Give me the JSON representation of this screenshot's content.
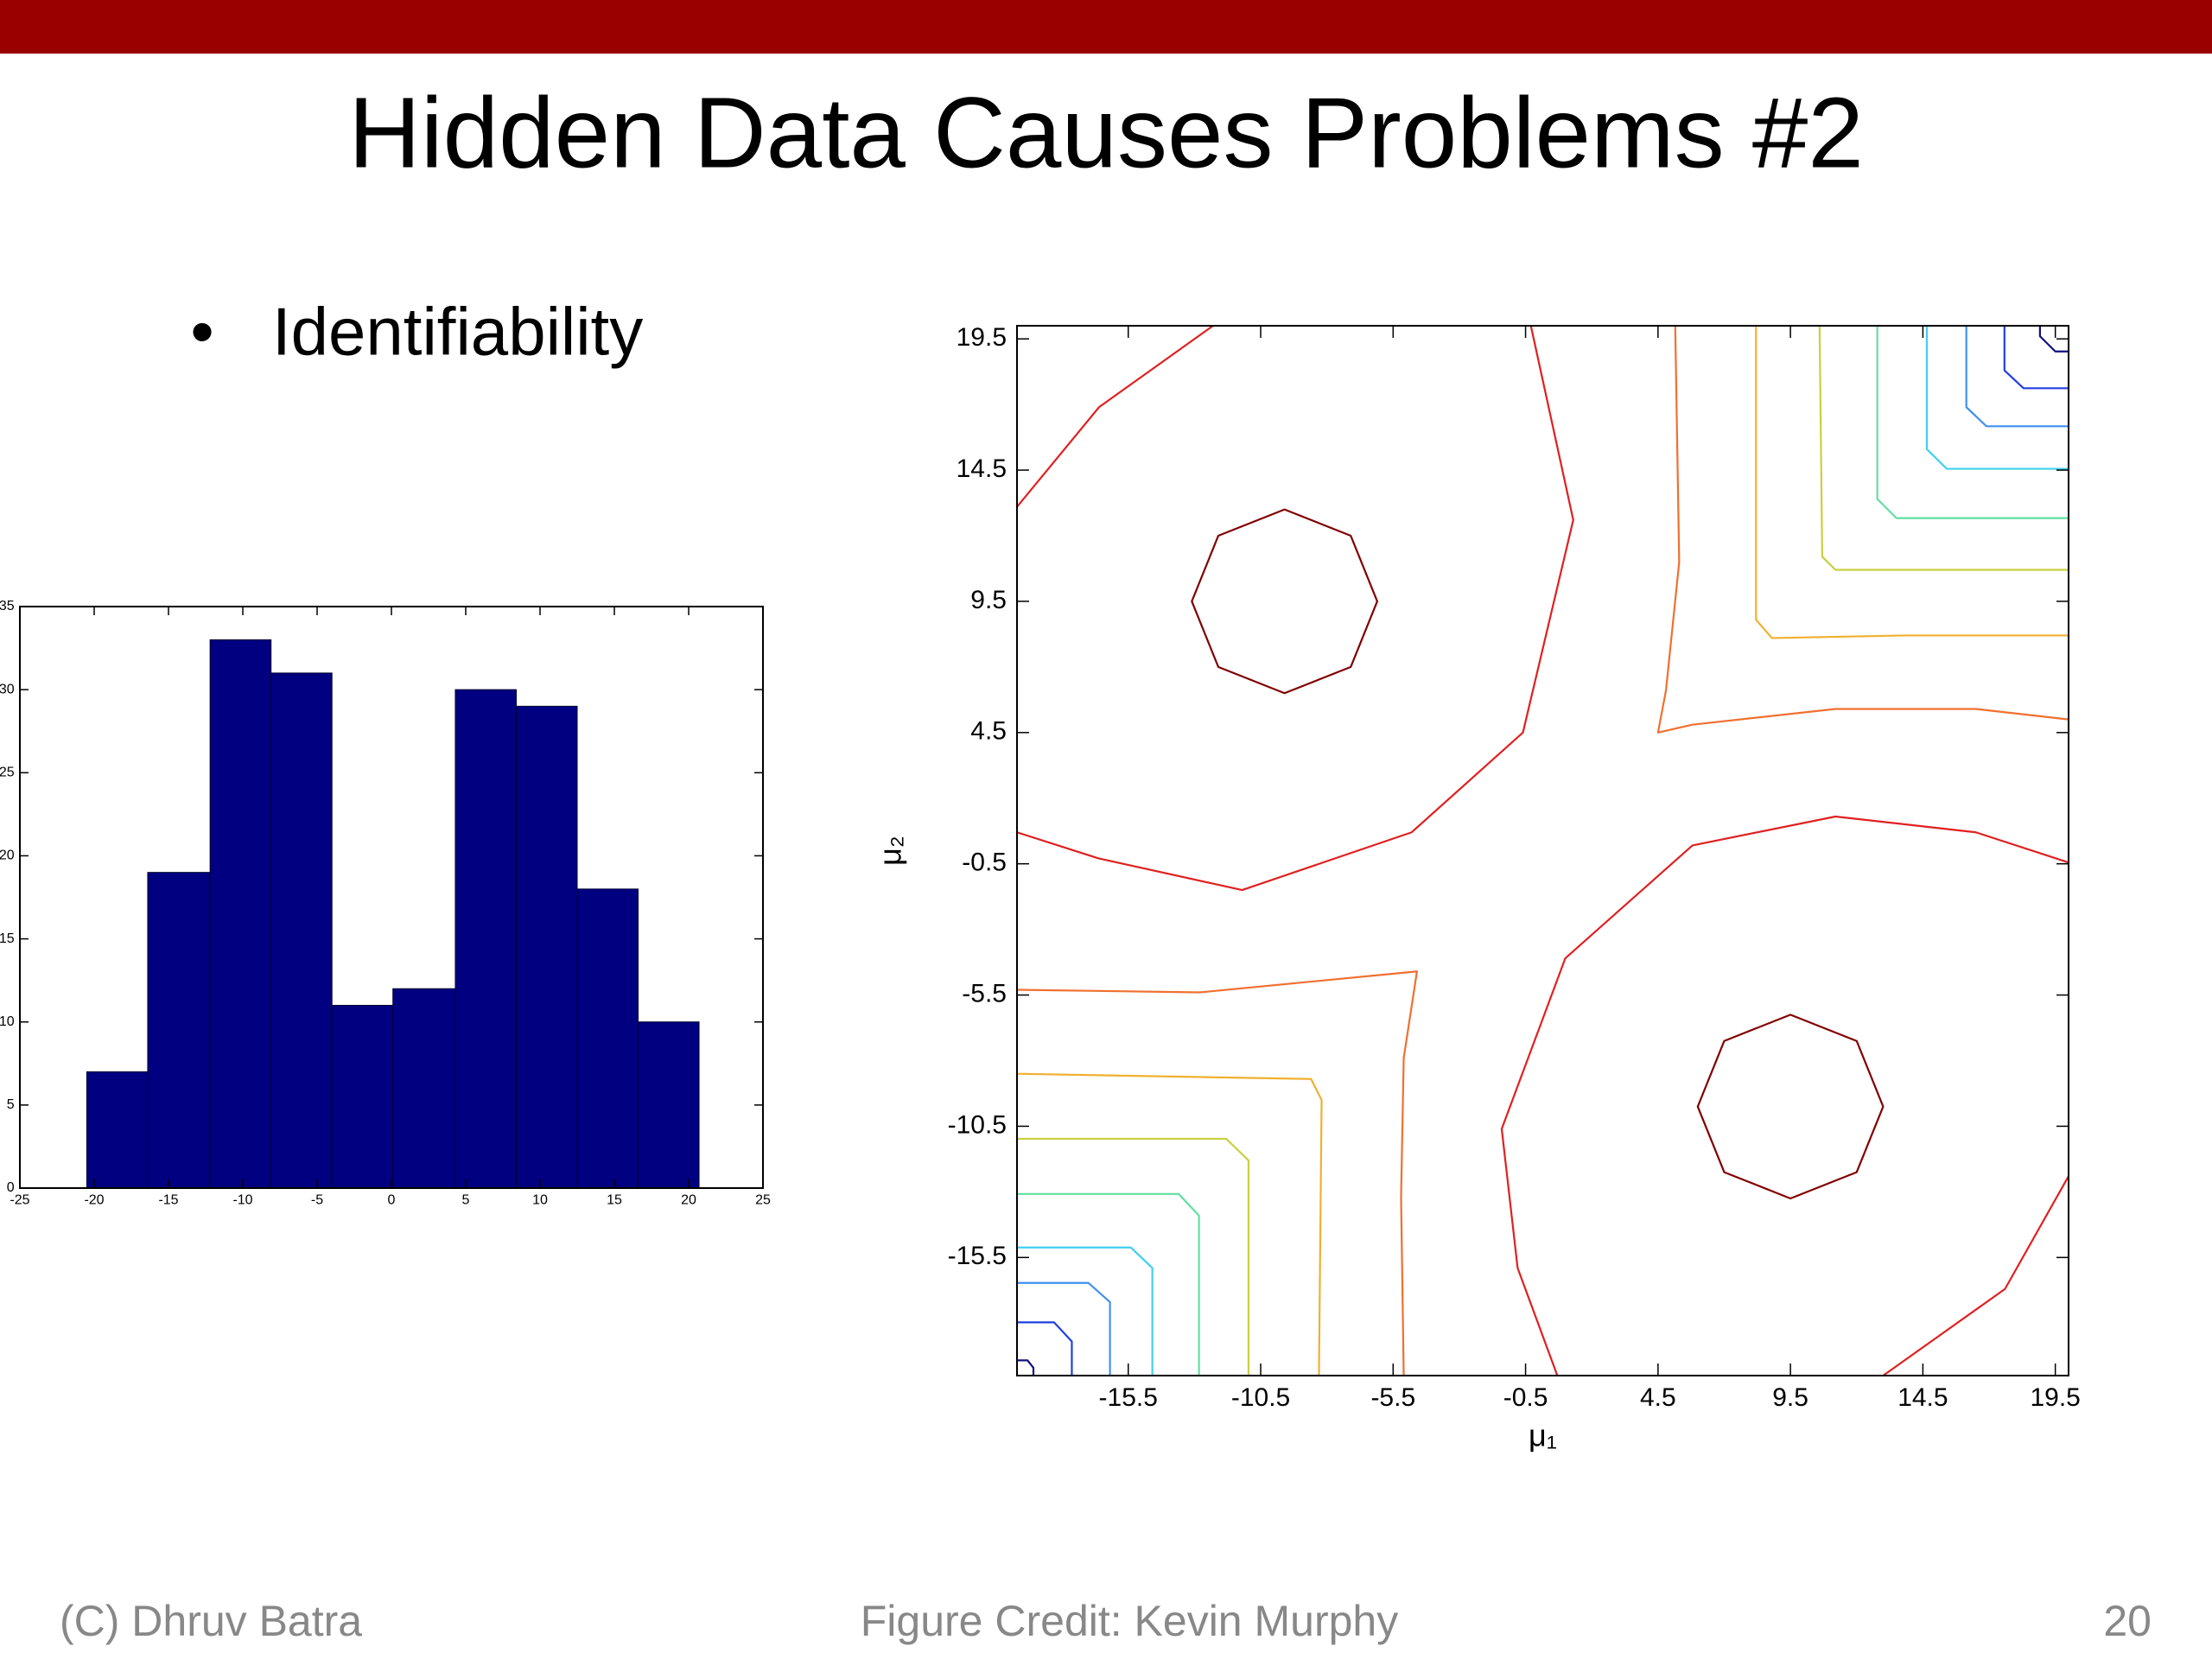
{
  "header": {
    "title": "Hidden Data Causes Problems #2"
  },
  "bullets": [
    "Identifiability"
  ],
  "footer": {
    "left": "(C) Dhruv Batra",
    "center": "Figure Credit: Kevin Murphy",
    "right": "20"
  },
  "chart_data": [
    {
      "type": "histogram",
      "bins": [
        -20.5,
        -16.4,
        -12.2,
        -8.1,
        -4.0,
        0.1,
        4.3,
        8.4,
        12.5,
        16.6,
        20.7
      ],
      "values": [
        7,
        19,
        33,
        31,
        11,
        12,
        30,
        29,
        18,
        10
      ],
      "color": "#000080",
      "xlim": [
        -25,
        25
      ],
      "xticks": [
        -25,
        -20,
        -15,
        -10,
        -5,
        0,
        5,
        10,
        15,
        20,
        25
      ],
      "ylim": [
        0,
        35
      ],
      "yticks": [
        0,
        5,
        10,
        15,
        20,
        25,
        30,
        35
      ]
    },
    {
      "type": "contour",
      "xlabel": "μ₁",
      "ylabel": "μ₂",
      "xlim": [
        -19.7,
        20
      ],
      "xticks": [
        -15.5,
        -10.5,
        -5.5,
        -0.5,
        4.5,
        9.5,
        14.5,
        19.5
      ],
      "ylim": [
        -20,
        20
      ],
      "yticks": [
        -15.5,
        -10.5,
        -5.5,
        -0.5,
        4.5,
        9.5,
        14.5,
        19.5
      ],
      "series": [
        {
          "color": "#800000",
          "closed": true,
          "x": [
            -6.1,
            -7.1,
            -9.6,
            -12.1,
            -13.1,
            -12.1,
            -9.6,
            -7.1,
            null,
            13,
            12,
            9.5,
            7,
            6,
            7,
            9.5,
            12
          ],
          "y": [
            9.5,
            12,
            13,
            12,
            9.5,
            7,
            6,
            7,
            null,
            -9.75,
            -7.25,
            -6.25,
            -7.25,
            -9.75,
            -12.25,
            -13.25,
            -12.25
          ]
        },
        {
          "color": "#e02020",
          "x": [
            -19.7,
            -16.6,
            -12.3,
            null,
            -0.3,
            1.3,
            -0.6,
            -4.8,
            -11.2,
            -16.6,
            -19.7,
            null,
            20,
            16.5,
            11.2,
            5.8,
            1.0,
            -1.4,
            -0.8,
            0.7,
            null,
            13.0,
            17.6,
            20
          ],
          "y": [
            13.1,
            16.9,
            20,
            null,
            20,
            12.6,
            4.5,
            0.7,
            -1.5,
            -0.3,
            0.7,
            null,
            -0.45,
            0.7,
            1.3,
            0.2,
            -4.1,
            -10.6,
            -15.9,
            -20,
            null,
            -20,
            -16.7,
            -12.4
          ]
        },
        {
          "color": "#f07030",
          "x": [
            5.15,
            5.3,
            4.8,
            4.5,
            5.8,
            11.2,
            16.5,
            20,
            null,
            -19.7,
            -12.8,
            -4.6,
            -5.1,
            -5.2,
            -5.1
          ],
          "y": [
            20,
            11,
            6.1,
            4.5,
            4.8,
            5.4,
            5.4,
            5.0,
            null,
            -5.3,
            -5.4,
            -4.6,
            -7.9,
            -13.2,
            -20
          ]
        },
        {
          "color": "#f0b030",
          "x": [
            8.2,
            8.2,
            8.8,
            13.8,
            20,
            null,
            -19.7,
            -8.6,
            -8.2,
            -8.3
          ],
          "y": [
            20,
            8.8,
            8.1,
            8.2,
            8.2,
            null,
            -8.5,
            -8.7,
            -9.5,
            -20
          ]
        },
        {
          "color": "#c8d040",
          "x": [
            10.6,
            10.7,
            11.2,
            20,
            null,
            -19.7,
            -11.8,
            -10.96,
            -10.96
          ],
          "y": [
            20,
            11.2,
            10.7,
            10.7,
            null,
            -10.98,
            -10.98,
            -11.8,
            -20
          ]
        },
        {
          "color": "#60e0a0",
          "x": [
            12.78,
            12.78,
            13.5,
            20,
            null,
            -19.7,
            -13.6,
            -12.83,
            -12.83
          ],
          "y": [
            20,
            13.4,
            12.67,
            12.67,
            null,
            -13.08,
            -13.08,
            -13.9,
            -20
          ]
        },
        {
          "color": "#40d0f0",
          "x": [
            14.65,
            14.65,
            15.4,
            20,
            null,
            -19.7,
            -15.4,
            -14.59,
            -14.59
          ],
          "y": [
            20,
            15.3,
            14.55,
            14.55,
            null,
            -15.12,
            -15.12,
            -15.9,
            -20
          ]
        },
        {
          "color": "#4090f0",
          "x": [
            16.14,
            16.14,
            16.9,
            20,
            null,
            -19.7,
            -17.0,
            -16.19,
            -16.19
          ],
          "y": [
            20,
            16.9,
            16.17,
            16.17,
            null,
            -16.47,
            -16.47,
            -17.2,
            -20
          ]
        },
        {
          "color": "#2040e0",
          "x": [
            17.58,
            17.58,
            18.3,
            20,
            null,
            -19.7,
            -18.3,
            -17.63,
            -17.63
          ],
          "y": [
            20,
            18.3,
            17.62,
            17.62,
            null,
            -17.97,
            -17.97,
            -18.7,
            -20
          ]
        },
        {
          "color": "#101080",
          "x": [
            18.92,
            18.92,
            19.5,
            20,
            null,
            -19.7,
            -19.3,
            -19.08,
            -19.08
          ],
          "y": [
            20,
            19.6,
            19.02,
            19.02,
            null,
            -19.42,
            -19.42,
            -19.7,
            -20
          ]
        }
      ]
    }
  ]
}
